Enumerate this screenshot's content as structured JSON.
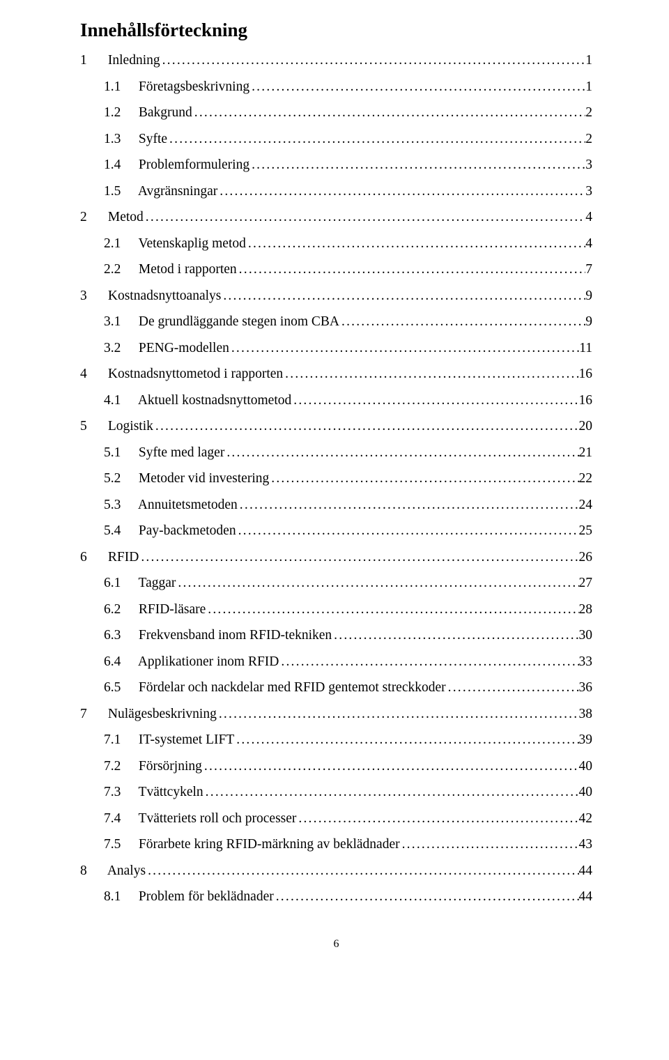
{
  "title": "Innehållsförteckning",
  "page_number": "6",
  "toc": [
    {
      "level": 1,
      "num": "1",
      "text": "Inledning",
      "page": "1"
    },
    {
      "level": 2,
      "num": "1.1",
      "text": "Företagsbeskrivning",
      "page": "1"
    },
    {
      "level": 2,
      "num": "1.2",
      "text": "Bakgrund",
      "page": "2"
    },
    {
      "level": 2,
      "num": "1.3",
      "text": "Syfte",
      "page": "2"
    },
    {
      "level": 2,
      "num": "1.4",
      "text": "Problemformulering",
      "page": "3"
    },
    {
      "level": 2,
      "num": "1.5",
      "text": "Avgränsningar",
      "page": "3"
    },
    {
      "level": 1,
      "num": "2",
      "text": "Metod",
      "page": "4"
    },
    {
      "level": 2,
      "num": "2.1",
      "text": "Vetenskaplig metod",
      "page": "4"
    },
    {
      "level": 2,
      "num": "2.2",
      "text": "Metod i rapporten",
      "page": "7"
    },
    {
      "level": 1,
      "num": "3",
      "text": "Kostnadsnyttoanalys",
      "page": "9"
    },
    {
      "level": 2,
      "num": "3.1",
      "text": "De grundläggande stegen inom CBA",
      "page": "9"
    },
    {
      "level": 2,
      "num": "3.2",
      "text": "PENG-modellen",
      "page": "11"
    },
    {
      "level": 1,
      "num": "4",
      "text": "Kostnadsnyttometod i rapporten",
      "page": "16"
    },
    {
      "level": 2,
      "num": "4.1",
      "text": "Aktuell kostnadsnyttometod",
      "page": "16"
    },
    {
      "level": 1,
      "num": "5",
      "text": "Logistik",
      "page": "20"
    },
    {
      "level": 2,
      "num": "5.1",
      "text": "Syfte med lager",
      "page": "21"
    },
    {
      "level": 2,
      "num": "5.2",
      "text": "Metoder vid investering",
      "page": "22"
    },
    {
      "level": 2,
      "num": "5.3",
      "text": "Annuitetsmetoden",
      "page": "24"
    },
    {
      "level": 2,
      "num": "5.4",
      "text": "Pay-backmetoden",
      "page": "25"
    },
    {
      "level": 1,
      "num": "6",
      "text": "RFID",
      "page": "26"
    },
    {
      "level": 2,
      "num": "6.1",
      "text": "Taggar",
      "page": "27"
    },
    {
      "level": 2,
      "num": "6.2",
      "text": "RFID-läsare",
      "page": "28"
    },
    {
      "level": 2,
      "num": "6.3",
      "text": "Frekvensband inom RFID-tekniken",
      "page": "30"
    },
    {
      "level": 2,
      "num": "6.4",
      "text": "Applikationer inom RFID",
      "page": "33"
    },
    {
      "level": 2,
      "num": "6.5",
      "text": "Fördelar och nackdelar med RFID gentemot streckkoder",
      "page": "36"
    },
    {
      "level": 1,
      "num": "7",
      "text": "Nulägesbeskrivning",
      "page": "38"
    },
    {
      "level": 2,
      "num": "7.1",
      "text": "IT-systemet LIFT",
      "page": "39"
    },
    {
      "level": 2,
      "num": "7.2",
      "text": "Försörjning",
      "page": "40"
    },
    {
      "level": 2,
      "num": "7.3",
      "text": "Tvättcykeln",
      "page": "40"
    },
    {
      "level": 2,
      "num": "7.4",
      "text": "Tvätteriets roll och processer",
      "page": "42"
    },
    {
      "level": 2,
      "num": "7.5",
      "text": "Förarbete kring RFID-märkning av beklädnader",
      "page": "43"
    },
    {
      "level": 1,
      "num": "8",
      "text": "Analys",
      "page": "44"
    },
    {
      "level": 2,
      "num": "8.1",
      "text": "Problem för beklädnader",
      "page": "44"
    }
  ]
}
